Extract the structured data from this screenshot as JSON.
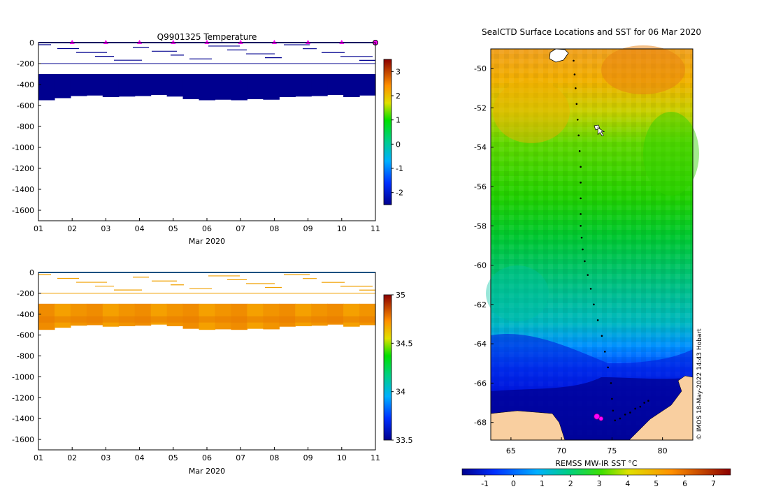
{
  "chart_data": [
    {
      "type": "heatmap",
      "title": "Q9901325  Temperature",
      "xlabel": "Mar 2020",
      "ylabel": "",
      "x_ticks": [
        "01",
        "02",
        "03",
        "04",
        "05",
        "06",
        "07",
        "08",
        "09",
        "10",
        "11"
      ],
      "xlim": [
        1,
        11
      ],
      "y_ticks": [
        0,
        -200,
        -400,
        -600,
        -800,
        -1000,
        -1200,
        -1400,
        -1600
      ],
      "ylim": [
        -1700,
        0
      ],
      "colorbar": {
        "range": [
          -2.5,
          3.5
        ],
        "ticks": [
          3,
          2,
          1,
          0,
          -1,
          -2
        ]
      },
      "surface_markers_days": [
        2,
        3,
        4,
        5,
        6,
        7,
        8,
        9,
        10
      ],
      "deep_profile_bottom_depths": [
        550,
        530,
        510,
        505,
        520,
        515,
        510,
        500,
        515,
        540,
        550,
        545,
        550,
        540,
        545,
        520,
        515,
        510,
        500,
        520,
        505
      ],
      "deep_profile_top_depth": 300,
      "deep_value": -2.2,
      "markers": {
        "surface": "#ff00ff"
      }
    },
    {
      "type": "heatmap",
      "title": "",
      "xlabel": "Mar 2020",
      "x_ticks": [
        "01",
        "02",
        "03",
        "04",
        "05",
        "06",
        "07",
        "08",
        "09",
        "10",
        "11"
      ],
      "xlim": [
        1,
        11
      ],
      "y_ticks": [
        0,
        -200,
        -400,
        -600,
        -800,
        -1000,
        -1200,
        -1400,
        -1600
      ],
      "ylim": [
        -1700,
        0
      ],
      "colorbar": {
        "range": [
          33.5,
          35
        ],
        "ticks": [
          "35",
          "34.5",
          "34",
          "33.5"
        ]
      },
      "deep_profile_bottom_depths": [
        550,
        530,
        510,
        505,
        520,
        515,
        510,
        500,
        515,
        540,
        550,
        545,
        550,
        540,
        545,
        520,
        515,
        510,
        500,
        520,
        505
      ],
      "deep_profile_top_depth": 300
    },
    {
      "type": "heatmap",
      "title": "SealCTD Surface Locations and SST for 06 Mar 2020",
      "xlabel": "",
      "x_ticks": [
        "65",
        "70",
        "75",
        "80"
      ],
      "xlim": [
        63,
        83
      ],
      "y_ticks": [
        "-50",
        "-52",
        "-54",
        "-56",
        "-58",
        "-60",
        "-62",
        "-64",
        "-66",
        "-68"
      ],
      "ylim": [
        -68.9,
        -49
      ],
      "colorbar": {
        "label": "REMSS MW-IR SST °C",
        "range": [
          -1.8,
          7.6
        ],
        "ticks": [
          "-1",
          "0",
          "1",
          "2",
          "3",
          "4",
          "5",
          "6",
          "7"
        ]
      },
      "track_lon": [
        71.2,
        71.3,
        71.4,
        71.5,
        71.6,
        71.7,
        71.8,
        71.9,
        71.9,
        71.9,
        71.9,
        71.9,
        72.0,
        72.1,
        72.3,
        72.6,
        72.9,
        73.2,
        73.6,
        74.0,
        74.3,
        74.6,
        74.9,
        75.0,
        75.1
      ],
      "track_lat": [
        -49.6,
        -50.3,
        -51.0,
        -51.8,
        -52.6,
        -53.4,
        -54.2,
        -55.0,
        -55.8,
        -56.6,
        -57.4,
        -58.0,
        -58.6,
        -59.2,
        -59.8,
        -60.5,
        -61.2,
        -62.0,
        -62.8,
        -63.6,
        -64.4,
        -65.2,
        -66.0,
        -66.8,
        -67.4
      ],
      "east_track_lon": [
        75.3,
        75.8,
        76.3,
        76.8,
        77.3,
        77.8,
        78.2,
        78.6
      ],
      "east_track_lat": [
        -67.9,
        -67.8,
        -67.6,
        -67.5,
        -67.3,
        -67.2,
        -67.0,
        -66.9
      ],
      "latest_position": {
        "lon": 73.5,
        "lat": -67.7
      },
      "cursor_position": {
        "lon": 73.6,
        "lat": -53.0
      },
      "land_color": "#f9cfa0"
    }
  ],
  "credit": "© IMOS 18-May-2022 14:43 Hobart"
}
